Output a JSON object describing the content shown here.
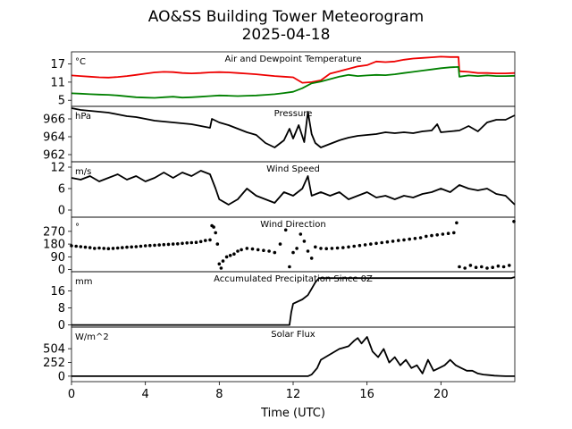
{
  "figure": {
    "title": "AO&SS Building Tower Meteorogram",
    "subtitle": "2025-04-18",
    "xlabel": "Time (UTC)"
  },
  "chart_data": [
    {
      "type": "line",
      "title": "Air and Dewpoint Temperature",
      "ylabel": "°C",
      "ylim": [
        3,
        21
      ],
      "yticks": [
        "5",
        "11",
        "17"
      ],
      "yticks_values": [
        5,
        11,
        17
      ],
      "xlim": [
        0,
        24
      ],
      "xticks": [
        "0",
        "4",
        "8",
        "12",
        "16",
        "20"
      ],
      "xticks_values": [
        0,
        4,
        8,
        12,
        16,
        20
      ],
      "x": [
        0,
        0.5,
        1,
        1.5,
        2,
        2.5,
        3,
        3.5,
        4,
        4.5,
        5,
        5.5,
        6,
        6.5,
        7,
        7.5,
        8,
        8.5,
        9,
        9.5,
        10,
        10.5,
        11,
        11.5,
        12,
        12.5,
        13,
        13.5,
        14,
        14.5,
        15,
        15.5,
        16,
        16.5,
        17,
        17.5,
        18,
        18.5,
        19,
        19.5,
        20,
        20.5,
        20.95,
        21,
        21.5,
        22,
        22.5,
        23,
        23.5,
        24
      ],
      "series": [
        {
          "color": "#ee0000",
          "values": [
            13.2,
            13.0,
            12.8,
            12.6,
            12.5,
            12.7,
            13.0,
            13.4,
            13.8,
            14.2,
            14.4,
            14.3,
            14.0,
            13.9,
            14.0,
            14.2,
            14.3,
            14.2,
            14.0,
            13.8,
            13.6,
            13.3,
            13.0,
            12.8,
            12.6,
            10.8,
            11.0,
            11.6,
            13.8,
            14.6,
            15.4,
            16.2,
            16.6,
            17.8,
            17.6,
            17.8,
            18.4,
            18.8,
            19.0,
            19.2,
            19.4,
            19.3,
            19.3,
            14.6,
            14.4,
            14.0,
            14.0,
            13.9,
            13.9,
            14.0
          ]
        },
        {
          "color": "#008000",
          "values": [
            7.3,
            7.2,
            7.0,
            6.9,
            6.8,
            6.6,
            6.3,
            6.0,
            5.9,
            5.8,
            6.0,
            6.2,
            5.9,
            6.0,
            6.2,
            6.4,
            6.6,
            6.5,
            6.4,
            6.5,
            6.6,
            6.8,
            7.0,
            7.4,
            7.8,
            9.0,
            10.6,
            11.2,
            12.0,
            12.8,
            13.4,
            13.0,
            13.2,
            13.4,
            13.3,
            13.6,
            14.0,
            14.4,
            14.8,
            15.2,
            15.6,
            15.9,
            16.0,
            12.8,
            13.2,
            13.0,
            13.2,
            13.0,
            13.0,
            13.1
          ]
        }
      ]
    },
    {
      "type": "line",
      "title": "Pressure",
      "ylabel": "hPa",
      "ylim": [
        961.2,
        967.4
      ],
      "yticks": [
        "962",
        "964",
        "966"
      ],
      "yticks_values": [
        962,
        964,
        966
      ],
      "xlim": [
        0,
        24
      ],
      "x": [
        0,
        0.5,
        1,
        1.5,
        2,
        2.5,
        3,
        3.5,
        4,
        4.5,
        5,
        5.5,
        6,
        6.5,
        7,
        7.5,
        7.6,
        8,
        8.5,
        9,
        9.5,
        10,
        10.5,
        11,
        11.5,
        11.8,
        12,
        12.3,
        12.6,
        12.8,
        13.0,
        13.2,
        13.5,
        14,
        14.5,
        15,
        15.5,
        16,
        16.5,
        17,
        17.5,
        18,
        18.5,
        19,
        19.5,
        19.8,
        20,
        20.5,
        21,
        21.5,
        22,
        22.5,
        23,
        23.5,
        24
      ],
      "series": [
        {
          "color": "#000000",
          "values": [
            967.2,
            967.0,
            966.9,
            966.8,
            966.7,
            966.5,
            966.3,
            966.2,
            966.0,
            965.8,
            965.7,
            965.6,
            965.5,
            965.4,
            965.2,
            965.0,
            966.0,
            965.6,
            965.3,
            964.9,
            964.5,
            964.2,
            963.3,
            962.8,
            963.6,
            964.9,
            963.8,
            965.3,
            963.4,
            966.8,
            964.3,
            963.3,
            962.8,
            963.2,
            963.6,
            963.9,
            964.1,
            964.2,
            964.3,
            964.5,
            964.4,
            964.5,
            964.4,
            964.6,
            964.7,
            965.4,
            964.5,
            964.6,
            964.7,
            965.2,
            964.6,
            965.6,
            965.9,
            965.9,
            966.4
          ]
        }
      ]
    },
    {
      "type": "line",
      "title": "Wind Speed",
      "ylabel": "m/s",
      "ylim": [
        -2,
        13.5
      ],
      "yticks": [
        "0",
        "6",
        "12"
      ],
      "yticks_values": [
        0,
        6,
        12
      ],
      "xlim": [
        0,
        24
      ],
      "x": [
        0,
        0.5,
        1,
        1.5,
        2,
        2.5,
        3,
        3.5,
        4,
        4.5,
        5,
        5.5,
        6,
        6.5,
        7,
        7.5,
        7.8,
        8,
        8.5,
        9,
        9.5,
        10,
        10.5,
        11,
        11.5,
        12,
        12.5,
        12.8,
        13,
        13.5,
        14,
        14.5,
        15,
        15.5,
        16,
        16.5,
        17,
        17.5,
        18,
        18.5,
        19,
        19.5,
        20,
        20.5,
        21,
        21.5,
        22,
        22.5,
        23,
        23.5,
        24
      ],
      "series": [
        {
          "color": "#000000",
          "values": [
            9,
            8.5,
            9.5,
            8,
            9,
            10,
            8.5,
            9.5,
            8,
            9,
            10.5,
            9,
            10.5,
            9.5,
            11,
            10,
            6,
            3,
            1.5,
            3,
            6,
            4,
            3,
            2,
            5,
            4,
            6,
            9.5,
            4,
            5,
            4,
            5,
            3,
            4,
            5,
            3.5,
            4,
            3,
            4,
            3.5,
            4.5,
            5,
            6,
            5,
            7,
            6,
            5.5,
            6,
            4.5,
            4,
            1.5
          ]
        }
      ]
    },
    {
      "type": "scatter",
      "title": "Wind Direction",
      "ylabel": "°",
      "ylim": [
        -15,
        370
      ],
      "yticks": [
        "0",
        "90",
        "180",
        "270"
      ],
      "yticks_values": [
        0,
        90,
        180,
        270
      ],
      "xlim": [
        0,
        24
      ],
      "x": [
        0,
        0.25,
        0.5,
        0.75,
        1,
        1.25,
        1.5,
        1.75,
        2,
        2.25,
        2.5,
        2.75,
        3,
        3.25,
        3.5,
        3.75,
        4,
        4.25,
        4.5,
        4.75,
        5,
        5.25,
        5.5,
        5.75,
        6,
        6.25,
        6.5,
        6.75,
        7,
        7.25,
        7.5,
        7.6,
        7.7,
        7.8,
        7.9,
        8.0,
        8.1,
        8.2,
        8.4,
        8.6,
        8.8,
        9.0,
        9.2,
        9.5,
        9.8,
        10.1,
        10.4,
        10.7,
        11.0,
        11.3,
        11.6,
        11.8,
        12.0,
        12.2,
        12.4,
        12.6,
        12.8,
        13.0,
        13.2,
        13.5,
        13.8,
        14.1,
        14.4,
        14.7,
        15.0,
        15.3,
        15.6,
        15.9,
        16.2,
        16.5,
        16.8,
        17.1,
        17.4,
        17.7,
        18.0,
        18.3,
        18.6,
        18.9,
        19.2,
        19.5,
        19.8,
        20.1,
        20.4,
        20.7,
        20.85,
        21.0,
        21.3,
        21.6,
        21.9,
        22.2,
        22.5,
        22.8,
        23.1,
        23.4,
        23.7,
        23.95
      ],
      "series": [
        {
          "color": "#000000",
          "values": [
            168,
            165,
            162,
            158,
            155,
            150,
            152,
            150,
            148,
            150,
            152,
            155,
            158,
            160,
            162,
            165,
            168,
            170,
            172,
            174,
            176,
            178,
            180,
            182,
            185,
            188,
            190,
            192,
            198,
            205,
            210,
            310,
            300,
            260,
            180,
            40,
            10,
            60,
            90,
            100,
            110,
            130,
            140,
            150,
            145,
            140,
            135,
            130,
            120,
            180,
            280,
            20,
            120,
            150,
            250,
            200,
            130,
            80,
            160,
            150,
            148,
            150,
            152,
            155,
            160,
            165,
            170,
            175,
            180,
            185,
            190,
            195,
            200,
            205,
            210,
            215,
            220,
            225,
            235,
            240,
            245,
            250,
            255,
            260,
            330,
            20,
            10,
            30,
            15,
            20,
            10,
            15,
            25,
            20,
            30,
            340
          ]
        }
      ]
    },
    {
      "type": "line",
      "title": "Accumulated Precipitation Since 0Z",
      "ylabel": "mm",
      "ylim": [
        -1,
        25
      ],
      "yticks": [
        "0",
        "8",
        "16"
      ],
      "yticks_values": [
        0,
        8,
        16
      ],
      "xlim": [
        0,
        24
      ],
      "x": [
        0,
        11.8,
        11.9,
        12.0,
        12.5,
        12.8,
        13.0,
        13.2,
        13.4,
        18,
        23.8,
        24
      ],
      "series": [
        {
          "color": "#000000",
          "values": [
            0,
            0,
            6,
            10,
            12,
            14,
            17,
            20,
            22,
            22,
            22,
            22.5
          ]
        }
      ]
    },
    {
      "type": "line",
      "title": "Solar Flux",
      "ylabel": "W/m^2",
      "ylim": [
        -100,
        900
      ],
      "yticks": [
        "0",
        "252",
        "504"
      ],
      "yticks_values": [
        0,
        252,
        504
      ],
      "xlim": [
        0,
        24
      ],
      "x": [
        0,
        6,
        11.5,
        12.8,
        13.0,
        13.3,
        13.5,
        14.0,
        14.5,
        15.0,
        15.3,
        15.5,
        15.7,
        15.9,
        16.0,
        16.3,
        16.6,
        16.9,
        17.2,
        17.5,
        17.8,
        18.1,
        18.4,
        18.7,
        19.0,
        19.3,
        19.6,
        19.9,
        20.2,
        20.5,
        20.8,
        21.1,
        21.4,
        21.7,
        22.0,
        22.3,
        22.6,
        22.9,
        23.2,
        23.5,
        24
      ],
      "series": [
        {
          "color": "#000000",
          "values": [
            0,
            0,
            0,
            0,
            30,
            150,
            300,
            400,
            500,
            550,
            650,
            700,
            600,
            680,
            720,
            450,
            350,
            500,
            250,
            350,
            200,
            300,
            150,
            200,
            50,
            300,
            100,
            150,
            200,
            300,
            200,
            150,
            100,
            100,
            50,
            30,
            20,
            10,
            5,
            0,
            0
          ]
        }
      ]
    }
  ]
}
